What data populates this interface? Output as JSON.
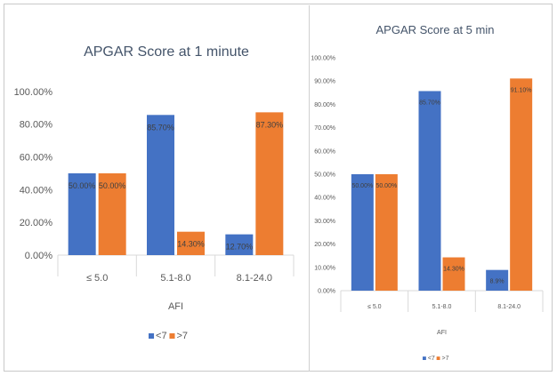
{
  "chart_data": [
    {
      "type": "bar",
      "title": "APGAR Score at 1 minute",
      "xlabel": "AFI",
      "ylabel": "",
      "categories": [
        "≤ 5.0",
        "5.1-8.0",
        "8.1-24.0"
      ],
      "ylim": [
        0,
        100
      ],
      "yticks": [
        "0.00%",
        "20.00%",
        "40.00%",
        "60.00%",
        "80.00%",
        "100.00%"
      ],
      "grid": false,
      "legend": "bottom",
      "series": [
        {
          "name": "<7",
          "color": "#4472c4",
          "values": [
            50.0,
            85.7,
            12.7
          ],
          "labels": [
            "50.00%",
            "85.70%",
            "12.70%"
          ]
        },
        {
          "name": ">7",
          "color": "#ed7d31",
          "values": [
            50.0,
            14.3,
            87.3
          ],
          "labels": [
            "50.00%",
            "14.30%",
            "87.30%"
          ]
        }
      ]
    },
    {
      "type": "bar",
      "title": "APGAR Score at 5 min",
      "xlabel": "AFI",
      "ylabel": "",
      "categories": [
        "≤ 5.0",
        "5.1-8.0",
        "8.1-24.0"
      ],
      "ylim": [
        0,
        100
      ],
      "yticks": [
        "0.00%",
        "10.00%",
        "20.00%",
        "30.00%",
        "40.00%",
        "50.00%",
        "60.00%",
        "70.00%",
        "80.00%",
        "90.00%",
        "100.00%"
      ],
      "grid": false,
      "legend": "bottom",
      "series": [
        {
          "name": "<7",
          "color": "#4472c4",
          "values": [
            50.0,
            85.7,
            8.9
          ],
          "labels": [
            "50.00%",
            "85.70%",
            "8.9%"
          ]
        },
        {
          "name": ">7",
          "color": "#ed7d31",
          "values": [
            50.0,
            14.3,
            91.1
          ],
          "labels": [
            "50.00%",
            "14.30%",
            "91.10%"
          ]
        }
      ]
    }
  ]
}
